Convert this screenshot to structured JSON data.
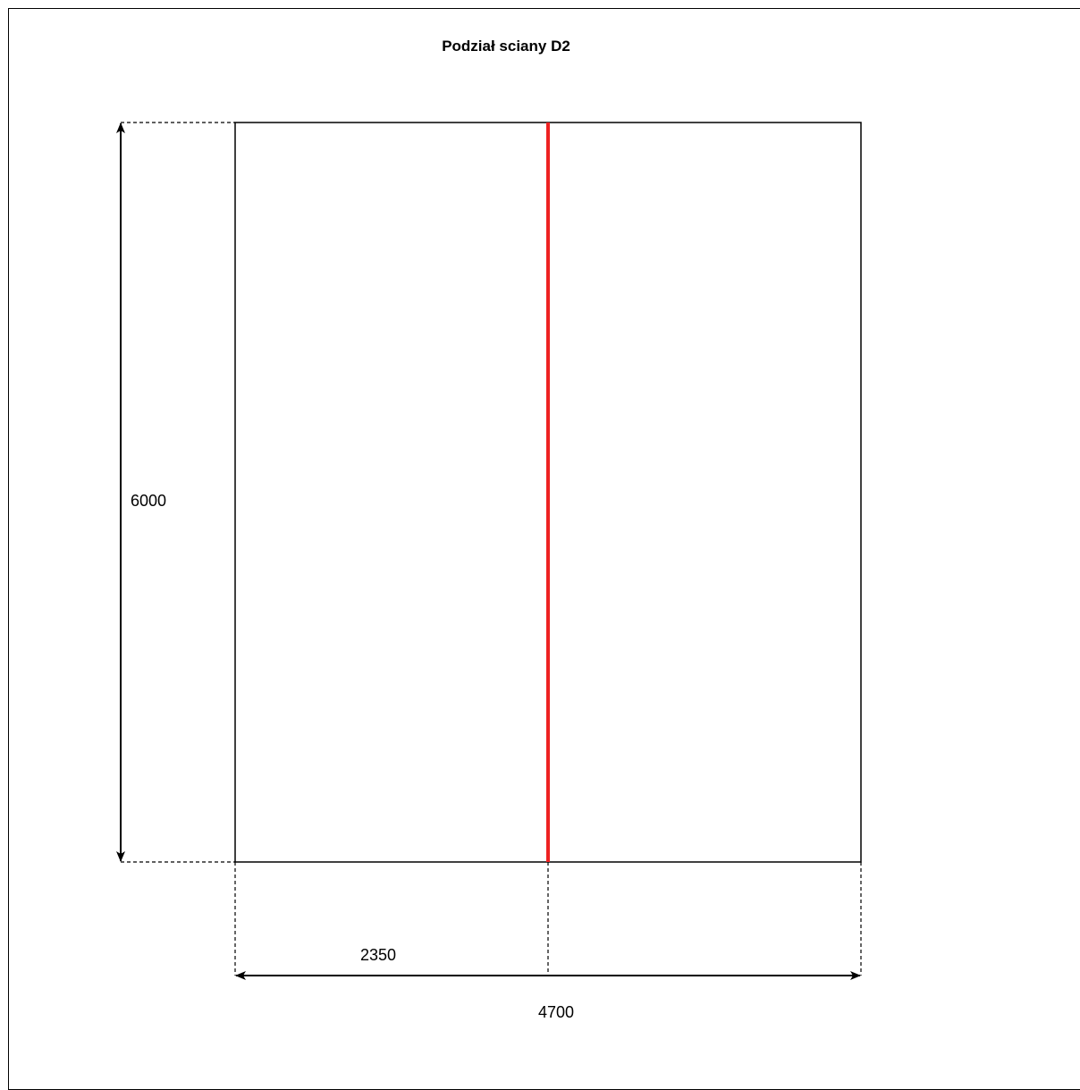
{
  "title": "Podział sciany D2",
  "wall": {
    "height_label": "6000",
    "width_label": "4700",
    "split_label": "2350",
    "split_color": "#ee2222"
  }
}
